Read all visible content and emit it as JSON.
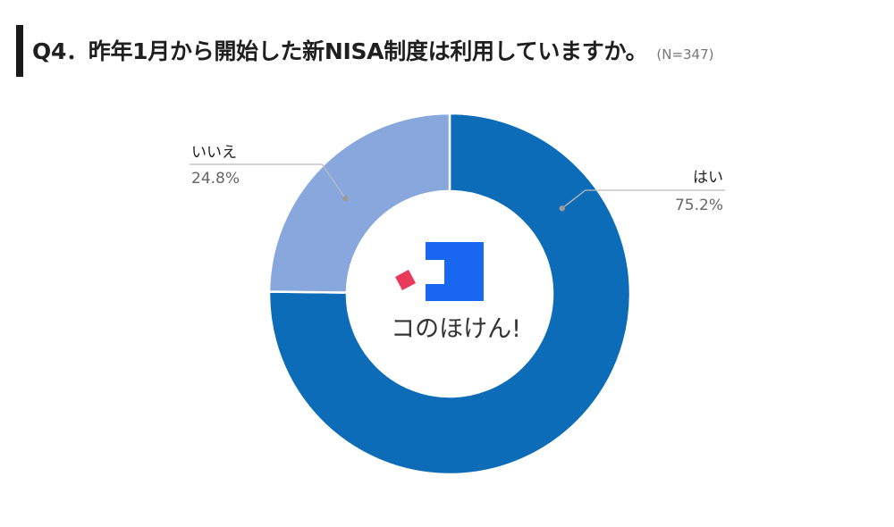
{
  "title": {
    "text": "Q4．昨年1月から開始した新NISA制度は利用していますか。",
    "sample": "(N=347)"
  },
  "logo_text": "コのほけん!",
  "chart_data": {
    "type": "pie",
    "donut": true,
    "start_angle": "top (12 o'clock)",
    "direction": "clockwise",
    "title": "Q4．昨年1月から開始した新NISA制度は利用していますか。",
    "slices": [
      {
        "label": "はい",
        "value": 75.2,
        "display": "75.2%",
        "color": "#0c6cb8"
      },
      {
        "label": "いいえ",
        "value": 24.8,
        "display": "24.8%",
        "color": "#88a8dd"
      }
    ],
    "colors": {
      "leader_line": "#bbbbbb",
      "leader_dot": "#9a9a9a",
      "logo_blue": "#1967f0",
      "logo_red": "#e93a5c"
    }
  }
}
